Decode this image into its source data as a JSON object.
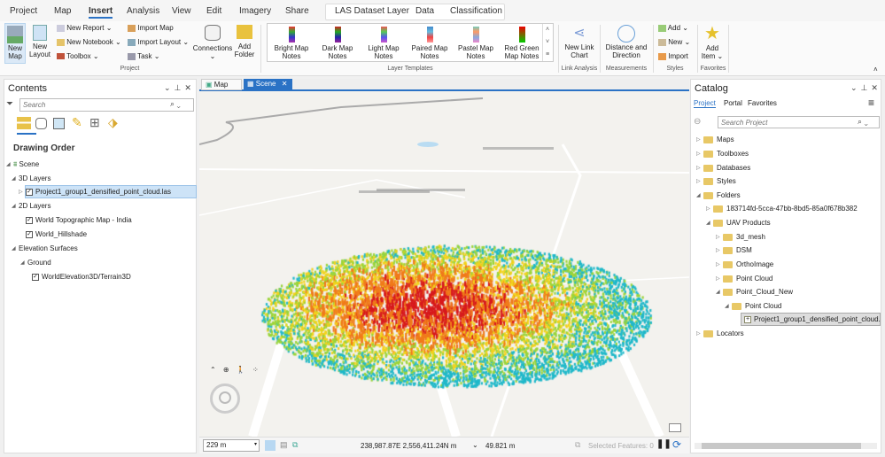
{
  "ribbon_tabs": [
    "Project",
    "Map",
    "Insert",
    "Analysis",
    "View",
    "Edit",
    "Imagery",
    "Share"
  ],
  "active_tab": "Insert",
  "context_tabs": [
    "LAS Dataset Layer",
    "Data",
    "Classification"
  ],
  "project_group": {
    "label": "Project",
    "new_map": "New Map",
    "new_layout": "New Layout",
    "new_report": "New Report",
    "new_notebook": "New Notebook",
    "toolbox": "Toolbox",
    "import_map": "Import Map",
    "import_layout": "Import Layout",
    "task": "Task",
    "connections": "Connections",
    "add_folder": "Add Folder"
  },
  "layer_templates": {
    "label": "Layer Templates",
    "items": [
      "Bright Map Notes",
      "Dark Map Notes",
      "Light Map Notes",
      "Paired Map Notes",
      "Pastel Map Notes",
      "Red Green Map Notes"
    ]
  },
  "link_analysis": {
    "label": "Link Analysis",
    "button": "New Link Chart"
  },
  "measurements": {
    "label": "Measurements",
    "button": "Distance and Direction"
  },
  "styles": {
    "label": "Styles",
    "add": "Add",
    "new": "New",
    "import": "Import"
  },
  "favorites": {
    "label": "Favorites",
    "button": "Add Item"
  },
  "contents": {
    "title": "Contents",
    "search_placeholder": "Search",
    "heading": "Drawing Order",
    "scene": "Scene",
    "layers_3d": "3D Layers",
    "point_cloud": "Project1_group1_densified_point_cloud.las",
    "layers_2d": "2D Layers",
    "topo": "World Topographic Map - India",
    "hillshade": "World_Hillshade",
    "elevation": "Elevation Surfaces",
    "ground": "Ground",
    "terrain": "WorldElevation3D/Terrain3D"
  },
  "view_tabs": [
    "Map",
    "Scene"
  ],
  "active_view": "Scene",
  "status": {
    "scale": "229 m",
    "coords": "238,987.87E 2,556,411.24N m",
    "elevation": "49.821 m",
    "selected": "Selected Features: 0"
  },
  "catalog": {
    "title": "Catalog",
    "tabs": [
      "Project",
      "Portal",
      "Favorites"
    ],
    "search_placeholder": "Search Project",
    "items": [
      "Maps",
      "Toolboxes",
      "Databases",
      "Styles",
      "Folders"
    ],
    "folder1": "183714fd-5cca-47bb-8bd5-85a0f678b382",
    "uav": "UAV Products",
    "uav_children": [
      "3d_mesh",
      "DSM",
      "OrthoImage",
      "Point Cloud",
      "Point_Cloud_New"
    ],
    "sub": "Point Cloud",
    "file": "Project1_group1_densified_point_cloud.las",
    "locators": "Locators"
  },
  "colors": {
    "accent": "#2a72c5",
    "selected_bg": "#cde3f7",
    "point_cloud_ramp": [
      "#1fb8c9",
      "#9ad43a",
      "#f2d21b",
      "#f07a1a",
      "#d7191c"
    ]
  }
}
